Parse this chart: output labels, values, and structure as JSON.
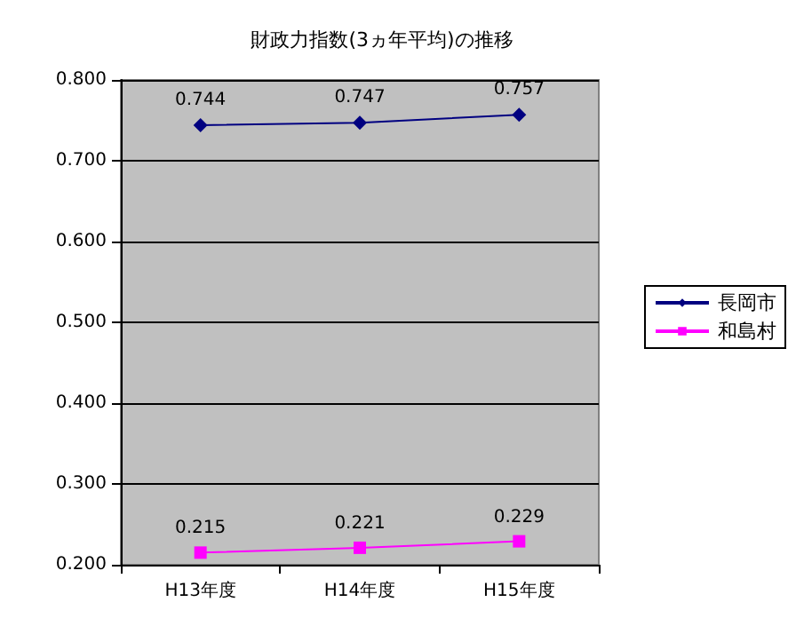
{
  "chart_data": {
    "type": "line",
    "title": "財政力指数(3ヵ年平均)の推移",
    "categories": [
      "H13年度",
      "H14年度",
      "H15年度"
    ],
    "series": [
      {
        "name": "長岡市",
        "color": "#000080",
        "values": [
          0.744,
          0.747,
          0.757
        ],
        "marker": "diamond"
      },
      {
        "name": "和島村",
        "color": "#ff00ff",
        "values": [
          0.215,
          0.221,
          0.229
        ],
        "marker": "square"
      }
    ],
    "ylim": [
      0.2,
      0.8
    ],
    "yticks": [
      "0.200",
      "0.300",
      "0.400",
      "0.500",
      "0.600",
      "0.700",
      "0.800"
    ],
    "data_labels": true,
    "grid": "y",
    "legend": "right"
  }
}
